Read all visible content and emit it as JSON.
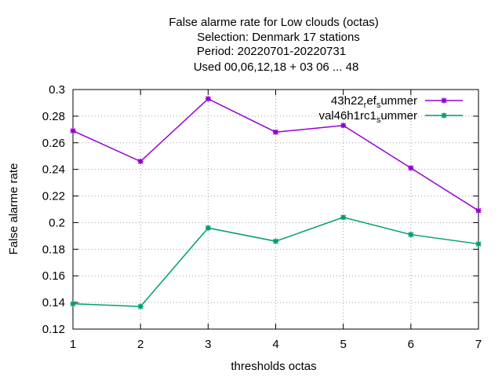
{
  "chart_data": {
    "type": "line",
    "title_lines": [
      "False alarme rate  for Low clouds (octas)",
      "Selection: Denmark      17 stations",
      "Period: 20220701-20220731",
      "Used  00,06,12,18  + 03 06 ... 48"
    ],
    "xlabel": "thresholds octas",
    "ylabel": "False alarme rate",
    "x": [
      1,
      2,
      3,
      4,
      5,
      6,
      7
    ],
    "xlim": [
      1,
      7
    ],
    "ylim": [
      0.12,
      0.3
    ],
    "xticks": [
      "1",
      "2",
      "3",
      "4",
      "5",
      "6",
      "7"
    ],
    "yticks": [
      "0.12",
      "0.14",
      "0.16",
      "0.18",
      "0.2",
      "0.22",
      "0.24",
      "0.26",
      "0.28",
      "0.3"
    ],
    "grid": true,
    "legend_position": "top-right",
    "series": [
      {
        "name": "43h22_ref_summer",
        "legend_parts": {
          "main": "43h22",
          "sub1": "r",
          "mid": "ef",
          "sub2": "s",
          "tail": "ummer"
        },
        "color": "#9400d3",
        "values": [
          0.269,
          0.246,
          0.293,
          0.268,
          0.273,
          0.241,
          0.209
        ]
      },
      {
        "name": "val46h1rc1_summer",
        "legend_parts": {
          "main": "val46h1rc1",
          "sub1": "",
          "mid": "",
          "sub2": "s",
          "tail": "ummer"
        },
        "color": "#009e73",
        "values": [
          0.139,
          0.137,
          0.196,
          0.186,
          0.204,
          0.191,
          0.184
        ]
      }
    ]
  }
}
